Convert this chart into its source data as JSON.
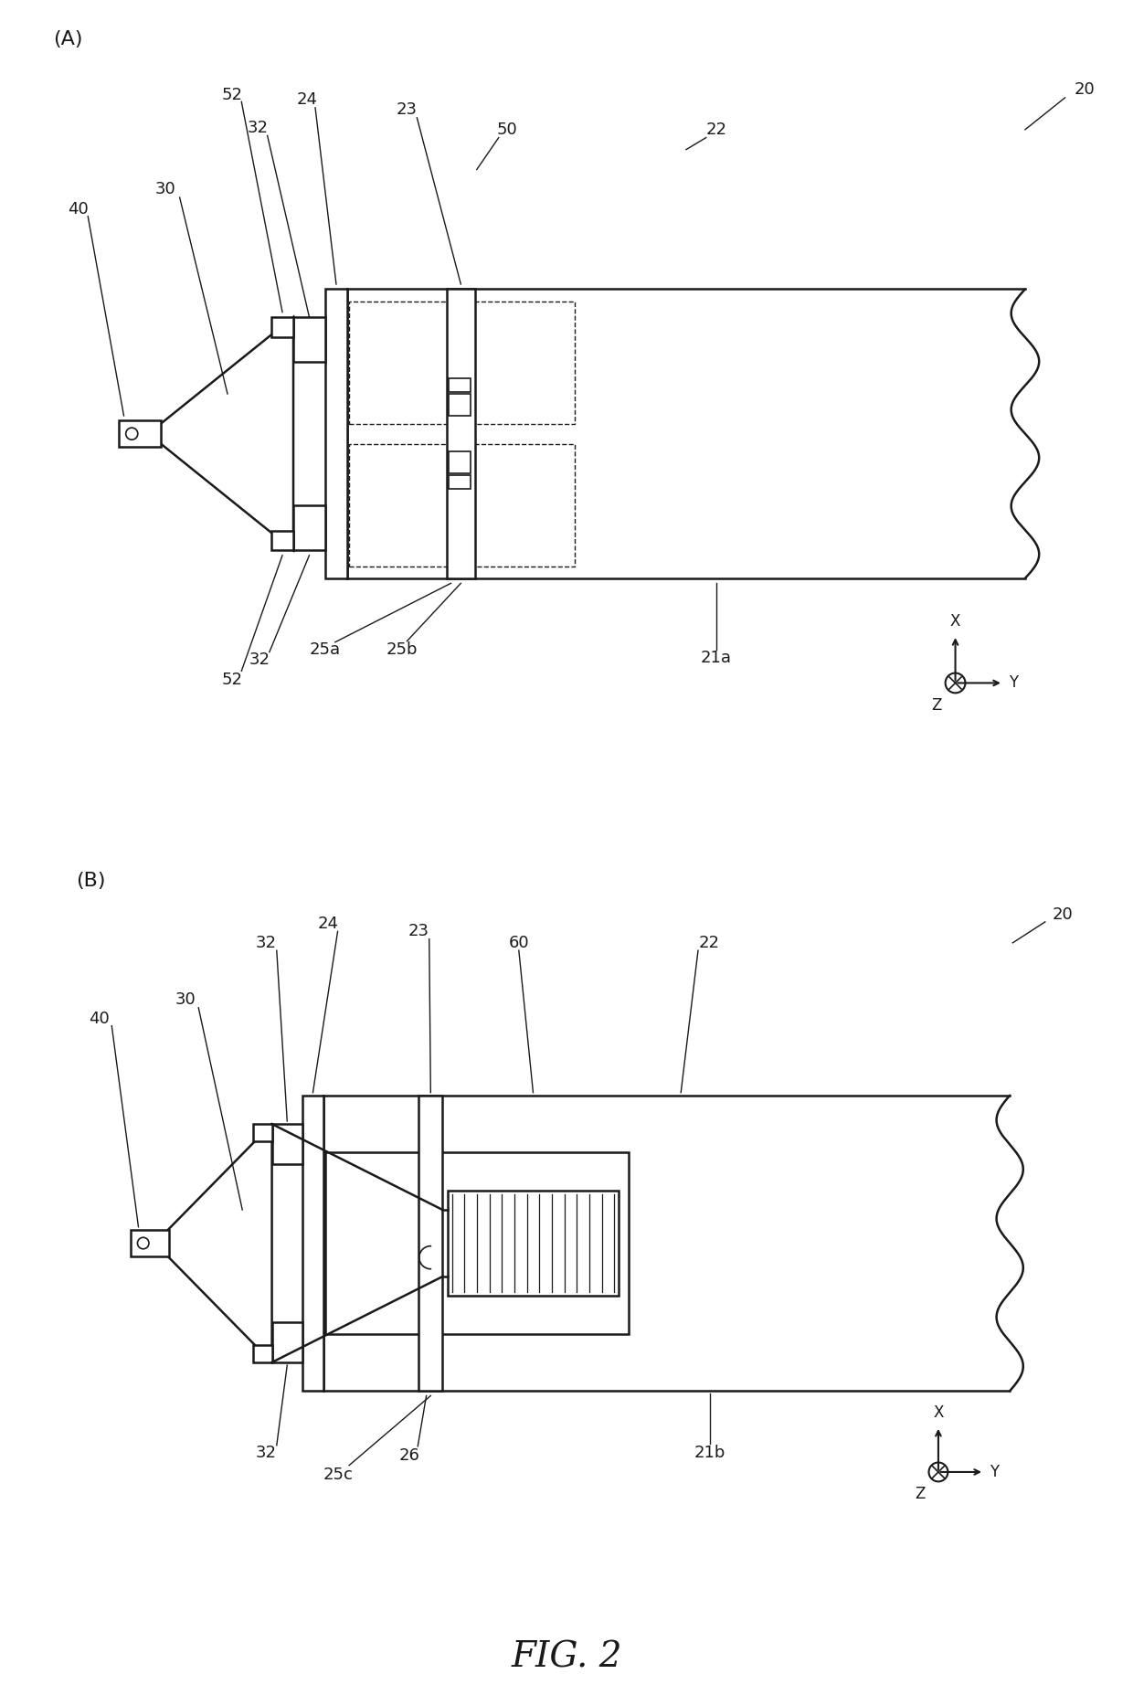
{
  "bg_color": "#ffffff",
  "line_color": "#1a1a1a",
  "fig_label": "FIG. 2",
  "panel_A_label": "(A)",
  "panel_B_label": "(B)"
}
